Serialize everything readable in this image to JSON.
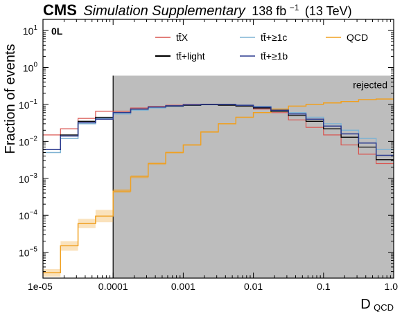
{
  "header": {
    "experiment": "CMS",
    "subtitle": "Simulation Supplementary",
    "lumi_value": "138 fb",
    "lumi_exp": "−1",
    "energy": "(13 TeV)"
  },
  "chart_data": {
    "type": "line",
    "step": true,
    "xscale": "log",
    "yscale": "log",
    "xlabel": "D",
    "xlabel_sub": "QCD",
    "ylabel": "Fraction of events",
    "xlim": [
      1e-05,
      1.0
    ],
    "ylim": [
      2e-06,
      20
    ],
    "category": "0L",
    "region_label": "rejected",
    "region_x": [
      0.0001,
      1.0
    ],
    "region_color": "#bdbdbd",
    "xticks": [
      1e-05,
      0.0001,
      0.001,
      0.01,
      0.1,
      1.0
    ],
    "xtick_labels": [
      "1e-05",
      "0.0001",
      "0.001",
      "0.01",
      "0.1",
      "1.0"
    ],
    "yticks": [
      1e-05,
      0.0001,
      0.001,
      0.01,
      0.1,
      1,
      10
    ],
    "ytick_base": "10",
    "ytick_exps": [
      "−5",
      "−4",
      "−3",
      "−2",
      "−1",
      "0",
      "1"
    ],
    "bin_edges": [
      1e-05,
      1.78e-05,
      3.16e-05,
      5.62e-05,
      0.0001,
      0.000178,
      0.000316,
      0.000562,
      0.001,
      0.00178,
      0.00316,
      0.00562,
      0.01,
      0.0178,
      0.0316,
      0.0562,
      0.1,
      0.178,
      0.316,
      0.562,
      1.0
    ],
    "series": [
      {
        "name": "tt̄X",
        "color": "#d9534f",
        "width": 1.2,
        "values": [
          0.015,
          0.022,
          0.042,
          0.065,
          0.065,
          0.08,
          0.088,
          0.095,
          0.1,
          0.1,
          0.098,
          0.09,
          0.075,
          0.06,
          0.038,
          0.024,
          0.015,
          0.008,
          0.0045,
          0.0025
        ]
      },
      {
        "name": "tt̄+≥1c",
        "color": "#7fb3d3",
        "width": 1.5,
        "values": [
          0.005,
          0.012,
          0.03,
          0.042,
          0.055,
          0.07,
          0.08,
          0.088,
          0.095,
          0.098,
          0.098,
          0.095,
          0.088,
          0.075,
          0.06,
          0.045,
          0.03,
          0.02,
          0.012,
          0.006
        ]
      },
      {
        "name": "QCD",
        "color": "#f0a020",
        "width": 1.5,
        "values": [
          2.8e-06,
          1.5e-05,
          6e-05,
          9.5e-05,
          0.00045,
          0.0011,
          0.0025,
          0.005,
          0.008,
          0.018,
          0.03,
          0.045,
          0.06,
          0.075,
          0.09,
          0.1,
          0.11,
          0.12,
          0.135,
          0.14
        ],
        "err_low": [
          2.2e-06,
          1.1e-05,
          4.5e-05,
          6.5e-05,
          0.0004,
          0.001,
          0.0023,
          0.0047,
          0.0076,
          0.0172,
          0.029,
          0.0437,
          0.0585,
          0.0735,
          0.0885,
          0.0985,
          0.108,
          0.118,
          0.133,
          0.138
        ],
        "err_high": [
          3.5e-06,
          2e-05,
          8e-05,
          0.00014,
          0.00052,
          0.00122,
          0.0027,
          0.0053,
          0.0084,
          0.0188,
          0.031,
          0.0463,
          0.0615,
          0.0765,
          0.0915,
          0.1015,
          0.112,
          0.122,
          0.137,
          0.142
        ]
      },
      {
        "name": "tt̄+light",
        "color": "#000000",
        "width": 1.3,
        "values": [
          0.006,
          0.015,
          0.035,
          0.045,
          0.06,
          0.075,
          0.085,
          0.09,
          0.095,
          0.098,
          0.095,
          0.09,
          0.08,
          0.065,
          0.05,
          0.035,
          0.022,
          0.013,
          0.007,
          0.0032
        ]
      },
      {
        "name": "tt̄+≥1b",
        "color": "#2b3a8f",
        "width": 1.5,
        "values": [
          0.006,
          0.014,
          0.032,
          0.04,
          0.06,
          0.075,
          0.085,
          0.092,
          0.098,
          0.1,
          0.1,
          0.095,
          0.085,
          0.07,
          0.055,
          0.04,
          0.026,
          0.016,
          0.009,
          0.0042
        ]
      }
    ],
    "legend": {
      "placement": "top-right",
      "entries": [
        {
          "label_base": "tt̄",
          "label_suffix": "X",
          "color": "#d9534f"
        },
        {
          "label_base": "tt̄",
          "label_suffix": "+≥1c",
          "color": "#7fb3d3"
        },
        {
          "label_base": "QCD",
          "label_suffix": "",
          "color": "#f0a020"
        },
        {
          "label_base": "tt̄",
          "label_suffix": "+light",
          "color": "#000000"
        },
        {
          "label_base": "tt̄",
          "label_suffix": "+≥1b",
          "color": "#2b3a8f"
        }
      ]
    }
  }
}
